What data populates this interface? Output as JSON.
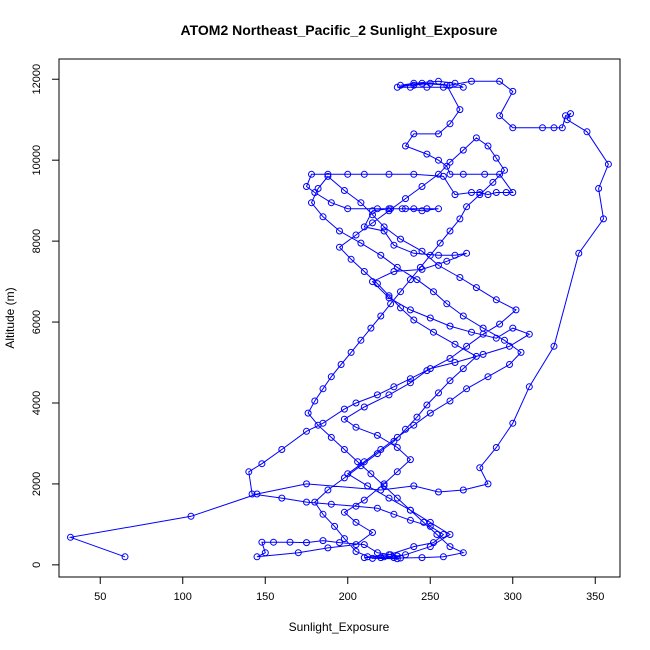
{
  "chart_data": {
    "type": "scatter",
    "title": "ATOM2 Northeast_Pacific_2 Sunlight_Exposure",
    "xlabel": "Sunlight_Exposure",
    "ylabel": "Altitude (m)",
    "xlim": [
      25,
      365
    ],
    "ylim": [
      -300,
      12500
    ],
    "x_ticks": [
      50,
      100,
      150,
      200,
      250,
      300,
      350
    ],
    "y_ticks": [
      0,
      2000,
      4000,
      6000,
      8000,
      10000,
      12000
    ],
    "grid": false,
    "series": [
      {
        "color": "#0000ff",
        "marker": "open-circle",
        "connected": true,
        "points": [
          [
            65,
            200
          ],
          [
            32,
            680
          ],
          [
            105,
            1200
          ],
          [
            145,
            1750
          ],
          [
            175,
            2000
          ],
          [
            220,
            1850
          ],
          [
            240,
            1950
          ],
          [
            255,
            1800
          ],
          [
            270,
            1850
          ],
          [
            285,
            2000
          ],
          [
            280,
            2400
          ],
          [
            290,
            2900
          ],
          [
            300,
            3500
          ],
          [
            310,
            4400
          ],
          [
            325,
            5400
          ],
          [
            340,
            7700
          ],
          [
            355,
            8550
          ],
          [
            352,
            9300
          ],
          [
            358,
            9900
          ],
          [
            345,
            10700
          ],
          [
            333,
            11000
          ],
          [
            335,
            11150
          ],
          [
            332,
            11100
          ],
          [
            330,
            10800
          ],
          [
            325,
            10800
          ],
          [
            318,
            10800
          ],
          [
            300,
            10800
          ],
          [
            292,
            11100
          ],
          [
            300,
            11700
          ],
          [
            292,
            11950
          ],
          [
            275,
            11950
          ],
          [
            262,
            11850
          ],
          [
            250,
            11900
          ],
          [
            240,
            11850
          ],
          [
            232,
            11850
          ],
          [
            240,
            11900
          ],
          [
            255,
            11950
          ],
          [
            265,
            11900
          ],
          [
            270,
            11800
          ],
          [
            258,
            11800
          ],
          [
            248,
            11800
          ],
          [
            238,
            11800
          ],
          [
            230,
            11800
          ],
          [
            245,
            11900
          ],
          [
            260,
            11850
          ],
          [
            268,
            11250
          ],
          [
            262,
            10900
          ],
          [
            255,
            10650
          ],
          [
            240,
            10650
          ],
          [
            235,
            10350
          ],
          [
            248,
            10150
          ],
          [
            255,
            10000
          ],
          [
            260,
            9850
          ],
          [
            262,
            9650
          ],
          [
            270,
            9650
          ],
          [
            283,
            9650
          ],
          [
            292,
            9650
          ],
          [
            300,
            9200
          ],
          [
            296,
            9200
          ],
          [
            290,
            9200
          ],
          [
            285,
            9150
          ],
          [
            280,
            9200
          ],
          [
            275,
            9200
          ],
          [
            265,
            9150
          ],
          [
            258,
            9600
          ],
          [
            240,
            9650
          ],
          [
            225,
            9650
          ],
          [
            210,
            9650
          ],
          [
            200,
            9650
          ],
          [
            188,
            9650
          ],
          [
            178,
            9650
          ],
          [
            175,
            9350
          ],
          [
            180,
            9200
          ],
          [
            190,
            8950
          ],
          [
            200,
            8800
          ],
          [
            218,
            8800
          ],
          [
            226,
            8800
          ],
          [
            233,
            8800
          ],
          [
            240,
            8800
          ],
          [
            248,
            8800
          ],
          [
            255,
            8800
          ],
          [
            245,
            8750
          ],
          [
            235,
            8800
          ],
          [
            225,
            8800
          ],
          [
            215,
            8750
          ],
          [
            210,
            8350
          ],
          [
            222,
            8250
          ],
          [
            228,
            7900
          ],
          [
            240,
            7700
          ],
          [
            255,
            7650
          ],
          [
            265,
            7650
          ],
          [
            272,
            7700
          ],
          [
            260,
            7500
          ],
          [
            245,
            7300
          ],
          [
            228,
            7250
          ],
          [
            215,
            7000
          ],
          [
            225,
            6600
          ],
          [
            238,
            6300
          ],
          [
            250,
            6100
          ],
          [
            262,
            5900
          ],
          [
            275,
            5750
          ],
          [
            290,
            5600
          ],
          [
            300,
            5850
          ],
          [
            310,
            5700
          ],
          [
            298,
            5400
          ],
          [
            282,
            5200
          ],
          [
            265,
            5000
          ],
          [
            250,
            4850
          ],
          [
            238,
            4600
          ],
          [
            228,
            4400
          ],
          [
            218,
            4200
          ],
          [
            205,
            4000
          ],
          [
            198,
            3850
          ],
          [
            185,
            3500
          ],
          [
            175,
            3300
          ],
          [
            160,
            2850
          ],
          [
            148,
            2500
          ],
          [
            140,
            2300
          ],
          [
            142,
            1750
          ],
          [
            160,
            1650
          ],
          [
            175,
            1550
          ],
          [
            190,
            1500
          ],
          [
            205,
            1450
          ],
          [
            218,
            1400
          ],
          [
            228,
            1250
          ],
          [
            238,
            1100
          ],
          [
            250,
            950
          ],
          [
            258,
            750
          ],
          [
            252,
            550
          ],
          [
            240,
            450
          ],
          [
            225,
            250
          ],
          [
            210,
            180
          ],
          [
            222,
            200
          ],
          [
            230,
            220
          ],
          [
            226,
            250
          ],
          [
            218,
            300
          ],
          [
            210,
            500
          ],
          [
            195,
            550
          ],
          [
            185,
            600
          ],
          [
            175,
            550
          ],
          [
            165,
            560
          ],
          [
            155,
            560
          ],
          [
            148,
            560
          ],
          [
            150,
            300
          ],
          [
            145,
            200
          ],
          [
            170,
            300
          ],
          [
            188,
            420
          ],
          [
            205,
            500
          ],
          [
            215,
            800
          ],
          [
            205,
            1050
          ],
          [
            198,
            1300
          ],
          [
            210,
            1600
          ],
          [
            222,
            2000
          ],
          [
            230,
            2300
          ],
          [
            238,
            2600
          ],
          [
            230,
            2900
          ],
          [
            218,
            3200
          ],
          [
            205,
            3400
          ],
          [
            198,
            3600
          ],
          [
            210,
            3900
          ],
          [
            225,
            4200
          ],
          [
            238,
            4500
          ],
          [
            248,
            4800
          ],
          [
            262,
            5100
          ],
          [
            272,
            5400
          ],
          [
            282,
            5700
          ],
          [
            292,
            5950
          ],
          [
            302,
            6300
          ],
          [
            290,
            6550
          ],
          [
            278,
            6850
          ],
          [
            268,
            7100
          ],
          [
            255,
            7400
          ],
          [
            245,
            7750
          ],
          [
            232,
            8050
          ],
          [
            222,
            8350
          ],
          [
            215,
            8650
          ],
          [
            208,
            8950
          ],
          [
            198,
            9250
          ],
          [
            188,
            9600
          ],
          [
            182,
            9300
          ],
          [
            178,
            8950
          ],
          [
            185,
            8600
          ],
          [
            195,
            8250
          ],
          [
            208,
            7950
          ],
          [
            220,
            7650
          ],
          [
            230,
            7350
          ],
          [
            242,
            7050
          ],
          [
            252,
            6750
          ],
          [
            260,
            6450
          ],
          [
            270,
            6150
          ],
          [
            282,
            5850
          ],
          [
            295,
            5550
          ],
          [
            305,
            5250
          ],
          [
            298,
            4950
          ],
          [
            285,
            4650
          ],
          [
            272,
            4350
          ],
          [
            262,
            4050
          ],
          [
            250,
            3750
          ],
          [
            240,
            3450
          ],
          [
            230,
            3150
          ],
          [
            220,
            2850
          ],
          [
            210,
            2550
          ],
          [
            200,
            2250
          ],
          [
            212,
            1950
          ],
          [
            225,
            1650
          ],
          [
            238,
            1350
          ],
          [
            250,
            1050
          ],
          [
            262,
            750
          ],
          [
            250,
            450
          ],
          [
            235,
            250
          ],
          [
            228,
            180
          ],
          [
            230,
            150
          ],
          [
            215,
            160
          ],
          [
            205,
            330
          ],
          [
            198,
            650
          ],
          [
            192,
            950
          ],
          [
            185,
            1250
          ],
          [
            180,
            1550
          ],
          [
            188,
            1850
          ],
          [
            198,
            2150
          ],
          [
            208,
            2450
          ],
          [
            218,
            2750
          ],
          [
            228,
            3050
          ],
          [
            235,
            3350
          ],
          [
            242,
            3650
          ],
          [
            248,
            3950
          ],
          [
            255,
            4250
          ],
          [
            262,
            4550
          ],
          [
            270,
            4850
          ],
          [
            278,
            5150
          ],
          [
            265,
            5450
          ],
          [
            252,
            5750
          ],
          [
            240,
            6050
          ],
          [
            232,
            6350
          ],
          [
            225,
            6650
          ],
          [
            218,
            6950
          ],
          [
            210,
            7250
          ],
          [
            202,
            7550
          ],
          [
            195,
            7850
          ],
          [
            205,
            8150
          ],
          [
            215,
            8450
          ],
          [
            225,
            8750
          ],
          [
            235,
            9050
          ],
          [
            245,
            9350
          ],
          [
            255,
            9650
          ],
          [
            262,
            9950
          ],
          [
            270,
            10250
          ],
          [
            278,
            10550
          ],
          [
            285,
            10350
          ],
          [
            290,
            10050
          ],
          [
            295,
            9750
          ],
          [
            288,
            9450
          ],
          [
            280,
            9150
          ],
          [
            272,
            8850
          ],
          [
            268,
            8550
          ],
          [
            262,
            8250
          ],
          [
            256,
            7950
          ],
          [
            250,
            7650
          ],
          [
            244,
            7350
          ],
          [
            238,
            7050
          ],
          [
            232,
            6750
          ],
          [
            226,
            6450
          ],
          [
            220,
            6150
          ],
          [
            214,
            5850
          ],
          [
            208,
            5550
          ],
          [
            202,
            5250
          ],
          [
            196,
            4950
          ],
          [
            190,
            4650
          ],
          [
            185,
            4350
          ],
          [
            180,
            4050
          ],
          [
            176,
            3750
          ],
          [
            182,
            3450
          ],
          [
            190,
            3150
          ],
          [
            198,
            2850
          ],
          [
            206,
            2550
          ],
          [
            214,
            2250
          ],
          [
            222,
            1950
          ],
          [
            230,
            1650
          ],
          [
            238,
            1350
          ],
          [
            246,
            1050
          ],
          [
            254,
            750
          ],
          [
            262,
            450
          ],
          [
            270,
            300
          ],
          [
            258,
            200
          ],
          [
            245,
            180
          ],
          [
            232,
            170
          ],
          [
            220,
            180
          ],
          [
            212,
            200
          ]
        ]
      }
    ]
  }
}
